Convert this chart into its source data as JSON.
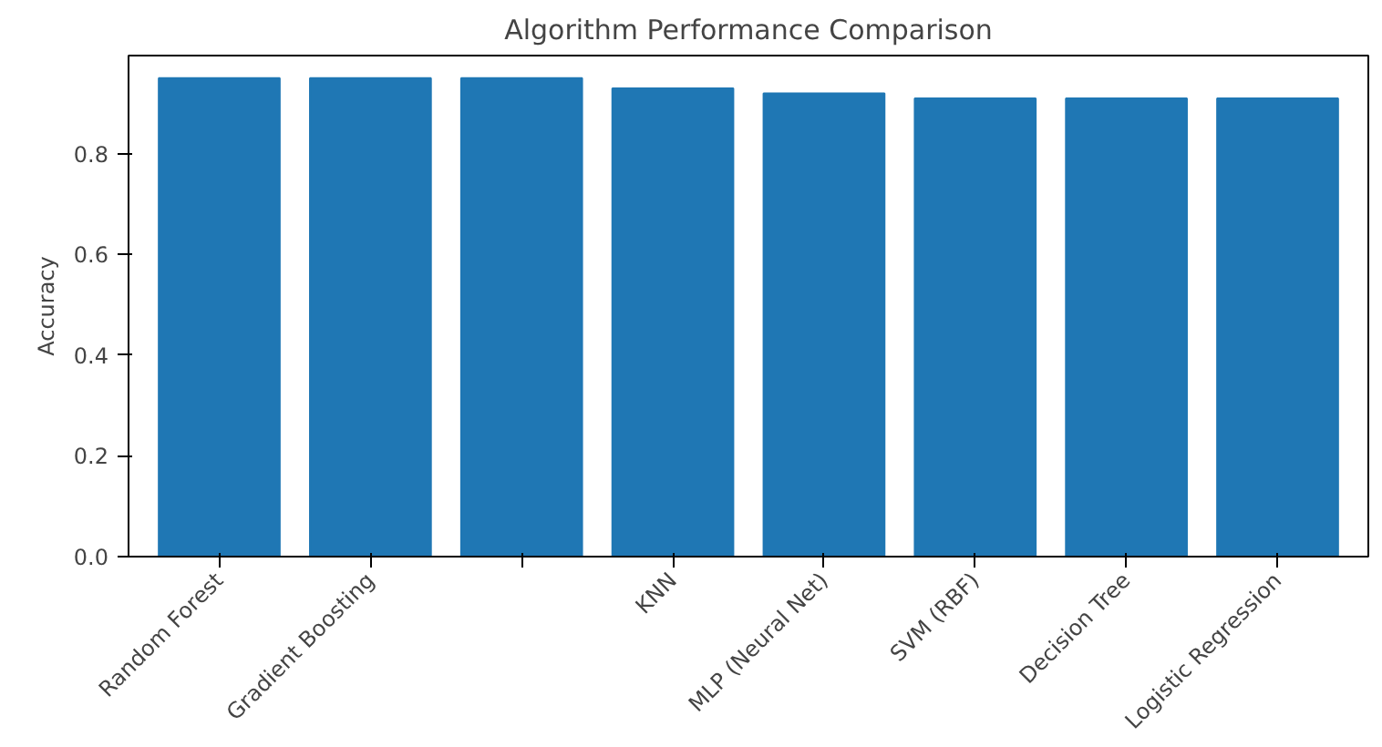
{
  "chart_data": {
    "type": "bar",
    "title": "Algorithm Performance Comparison",
    "ylabel": "Accuracy",
    "categories": [
      "Random Forest",
      "Gradient Boosting",
      null,
      "KNN",
      "MLP (Neural Net)",
      "SVM (RBF)",
      "Decision Tree",
      "Logistic Regression"
    ],
    "values": [
      0.95,
      0.95,
      0.95,
      0.93,
      0.92,
      0.91,
      0.91,
      0.91
    ],
    "color": "#1f77b4",
    "ylim": [
      0,
      0.995
    ],
    "yticks": [
      {
        "value": 0,
        "label": "0.0"
      },
      0.2,
      0.4,
      0.6,
      0.8
    ],
    "grid": false
  }
}
